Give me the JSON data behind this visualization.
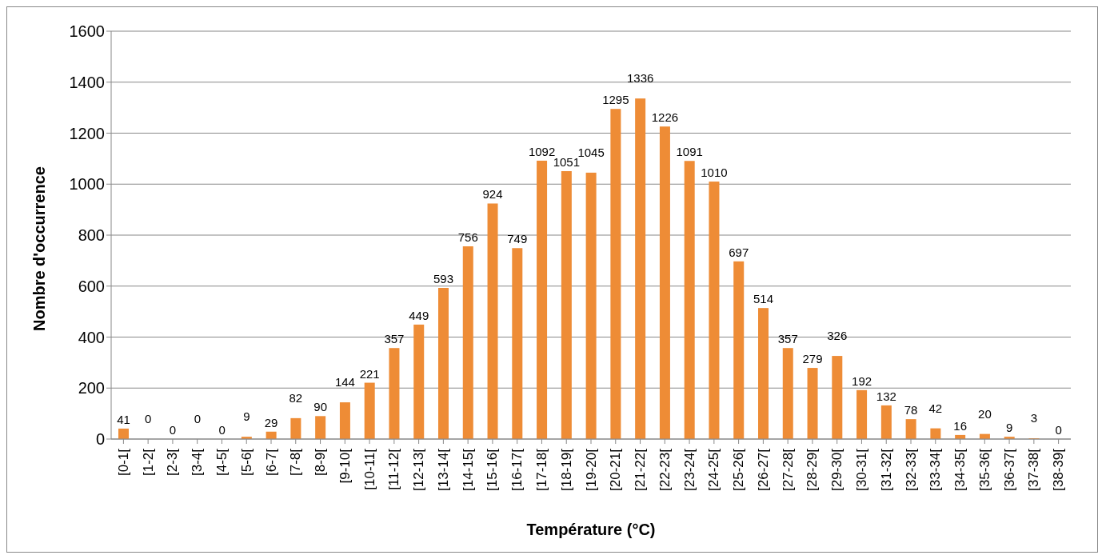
{
  "chart_data": {
    "type": "bar",
    "xlabel": "Température (°C)",
    "ylabel": "Nombre d'occurrence",
    "categories": [
      "[0-1[",
      "[1-2[",
      "[2-3[",
      "[3-4[",
      "[4-5[",
      "[5-6[",
      "[6-7[",
      "[7-8[",
      "[8-9[",
      "[9-10[",
      "[10-11[",
      "[11-12[",
      "[12-13[",
      "[13-14[",
      "[14-15[",
      "[15-16[",
      "[16-17[",
      "[17-18[",
      "[18-19[",
      "[19-20[",
      "[20-21[",
      "[21-22[",
      "[22-23[",
      "[23-24[",
      "[24-25[",
      "[25-26[",
      "[26-27[",
      "[27-28[",
      "[28-29[",
      "[29-30[",
      "[30-31[",
      "[31-32[",
      "[32-33[",
      "[33-34[",
      "[34-35[",
      "[35-36[",
      "[36-37[",
      "[37-38[",
      "[38-39["
    ],
    "values": [
      41,
      0,
      0,
      0,
      0,
      9,
      29,
      82,
      90,
      144,
      221,
      357,
      449,
      593,
      756,
      924,
      749,
      1092,
      1051,
      1045,
      1295,
      1336,
      1226,
      1091,
      1010,
      697,
      514,
      357,
      279,
      326,
      192,
      132,
      78,
      42,
      16,
      20,
      9,
      3,
      0
    ],
    "color": "#ee8c36",
    "ylim": [
      0,
      1600
    ],
    "yticks": [
      0,
      200,
      400,
      600,
      800,
      1000,
      1200,
      1400,
      1600
    ],
    "grid": "y",
    "data_labels": true,
    "legend": false
  }
}
